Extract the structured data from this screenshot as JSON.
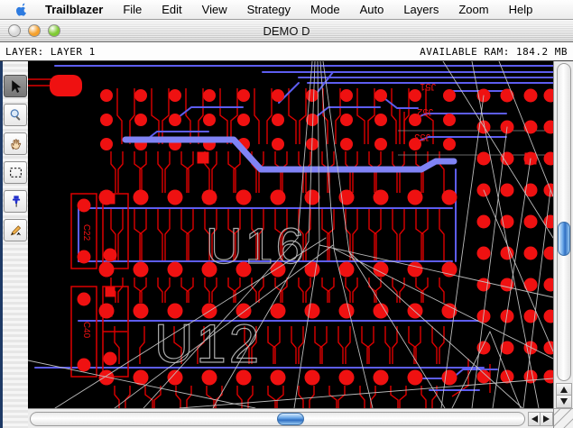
{
  "menu_bar": {
    "items": [
      "Trailblazer",
      "File",
      "Edit",
      "View",
      "Strategy",
      "Mode",
      "Auto",
      "Layers",
      "Zoom",
      "Help"
    ]
  },
  "window": {
    "title": "DEMO D",
    "traffic_lights": [
      {
        "name": "close",
        "color": "#d9d9d9"
      },
      {
        "name": "minimize",
        "color": "#f5a12d"
      },
      {
        "name": "zoom",
        "color": "#7fcb33"
      }
    ]
  },
  "status_bar": {
    "left": "LAYER: LAYER 1",
    "right": "AVAILABLE RAM: 184.2 MB"
  },
  "tool_palette": {
    "tools": [
      {
        "name": "pointer-tool",
        "selected": true
      },
      {
        "name": "zoom-tool",
        "selected": false
      },
      {
        "name": "pan-tool",
        "selected": false
      },
      {
        "name": "marquee-tool",
        "selected": false
      },
      {
        "name": "pin-tool",
        "selected": false
      },
      {
        "name": "route-tool",
        "selected": false
      }
    ]
  },
  "pcb": {
    "labels": {
      "ic_upper": "U16",
      "ic_lower": "U12",
      "cap_upper": "C22",
      "cap_lower": "C40",
      "connector_labels": [
        "J51",
        "J52",
        "J53"
      ]
    },
    "colors": {
      "background": "#000000",
      "pad": "#ef1111",
      "trace": "#dd0000",
      "signal_blue": "#5d5df0",
      "route_highlight": "#8083f5",
      "airwire": "#c4c4c4",
      "silkscreen": "#b4b4b4"
    }
  }
}
